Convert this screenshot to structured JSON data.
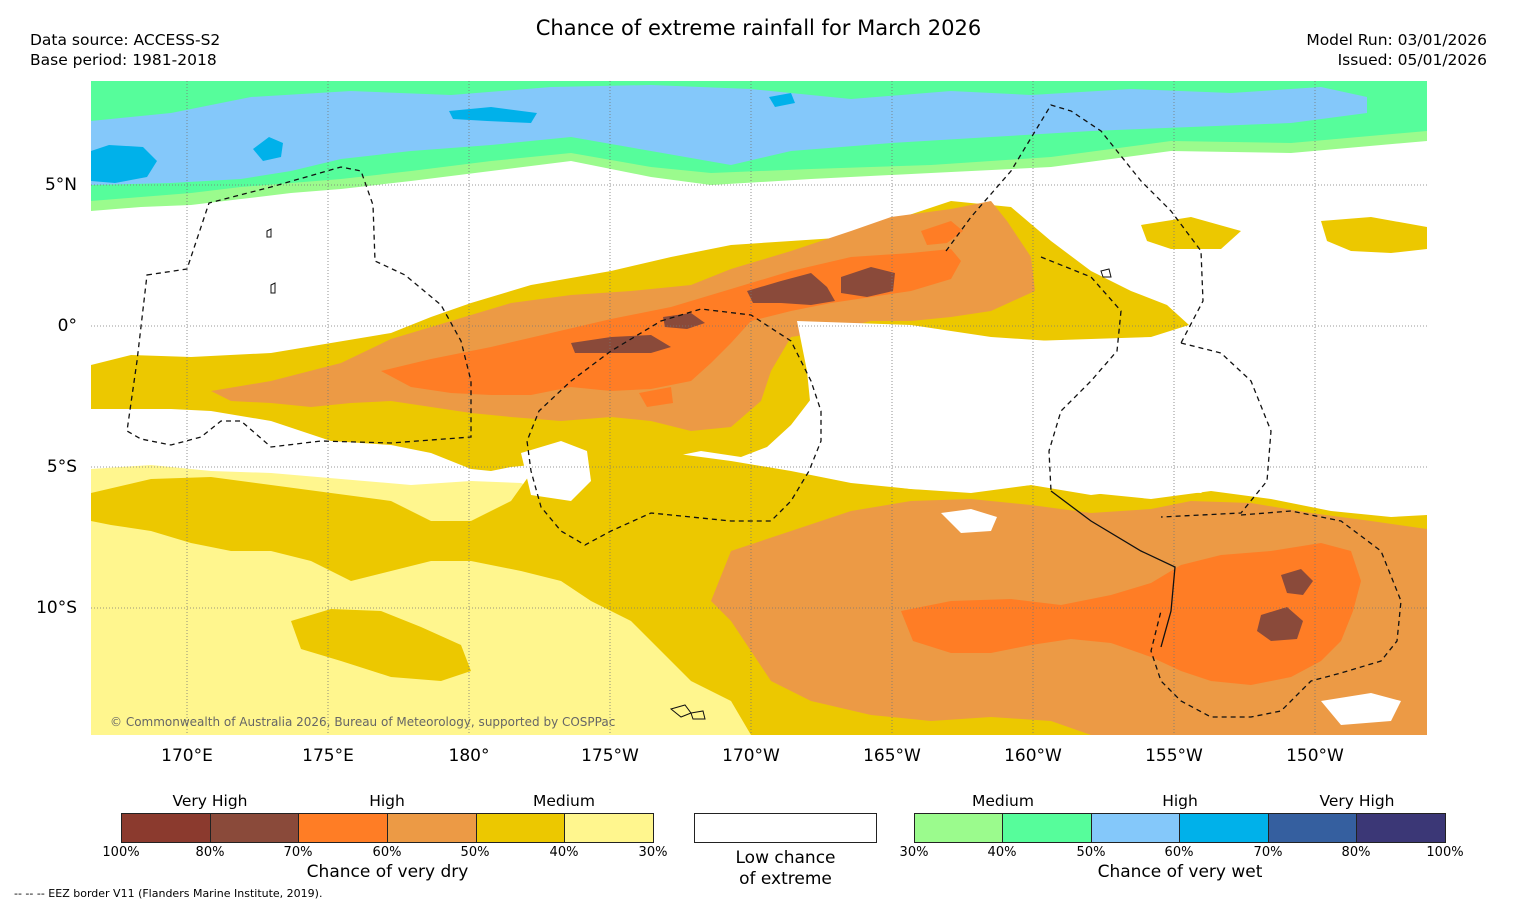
{
  "header": {
    "title": "Chance of extreme rainfall for March 2026",
    "data_source": "Data source: ACCESS-S2",
    "base_period": "Base period: 1981-2018",
    "model_run": "Model Run: 03/01/2026",
    "issued": "Issued: 05/01/2026"
  },
  "map": {
    "copyright": "© Commonwealth of Australia 2026, Bureau of Meteorology, supported by COSPPac",
    "lat_labels": [
      "5°N",
      "0°",
      "5°S",
      "10°S"
    ],
    "lon_labels": [
      "170°E",
      "175°E",
      "180°",
      "175°W",
      "170°W",
      "165°W",
      "160°W",
      "155°W",
      "150°W"
    ]
  },
  "colors": {
    "dry_100_90": "#8b3a2e",
    "dry_90_80": "#8a4a3a",
    "dry_70_60": "#ff7d25",
    "dry_60_50": "#ec9a45",
    "dry_50_40": "#ecc800",
    "dry_40_30": "#fff68e",
    "wet_30_40": "#9bfb8d",
    "wet_40_50": "#56fd9b",
    "wet_50_60": "#84c8fa",
    "wet_60_70": "#00b1ea",
    "wet_70_80": "#355f9f",
    "wet_80_100": "#3b3776"
  },
  "legend_dry": {
    "headers": [
      "Very High",
      "High",
      "Medium"
    ],
    "ticks": [
      "100%",
      "80%",
      "70%",
      "60%",
      "50%",
      "40%",
      "30%"
    ],
    "title": "Chance of very dry"
  },
  "legend_low": {
    "line1": "Low chance",
    "line2": "of extreme"
  },
  "legend_wet": {
    "headers": [
      "Medium",
      "High",
      "Very High"
    ],
    "ticks": [
      "30%",
      "40%",
      "50%",
      "60%",
      "70%",
      "80%",
      "100%"
    ],
    "title": "Chance of very wet"
  },
  "footer": {
    "eez_note": "--  --  -- EEZ border V11 (Flanders Marine Institute, 2019)."
  }
}
